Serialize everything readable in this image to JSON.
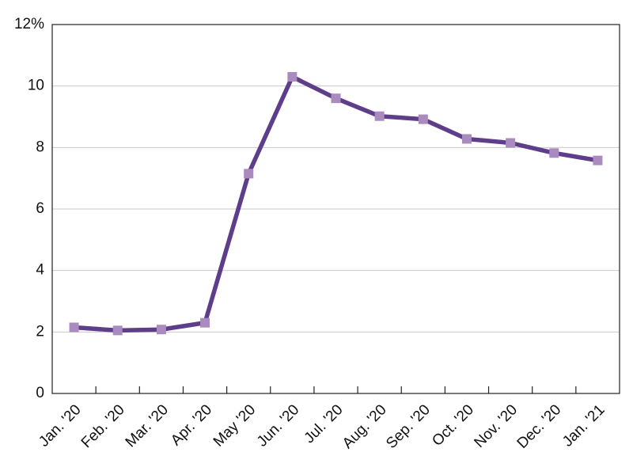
{
  "chart_data": {
    "type": "line",
    "categories": [
      "Jan. '20",
      "Feb. '20",
      "Mar. '20",
      "Apr. '20",
      "May '20",
      "Jun. '20",
      "Jul. '20",
      "Aug. '20",
      "Sep. '20",
      "Oct. '20",
      "Nov. '20",
      "Dec. '20",
      "Jan. '21"
    ],
    "series": [
      {
        "name": null,
        "color": "#5e3d8a",
        "marker_color": "#a98bc0",
        "values": [
          2.15,
          2.05,
          2.08,
          2.3,
          7.15,
          10.3,
          9.6,
          9.02,
          8.92,
          8.28,
          8.15,
          7.82,
          7.58
        ]
      }
    ],
    "ylim": [
      0,
      12
    ],
    "yticks": [
      0,
      2,
      4,
      6,
      8,
      10,
      {
        "value": 12,
        "label": "12%"
      }
    ],
    "grid": true
  }
}
